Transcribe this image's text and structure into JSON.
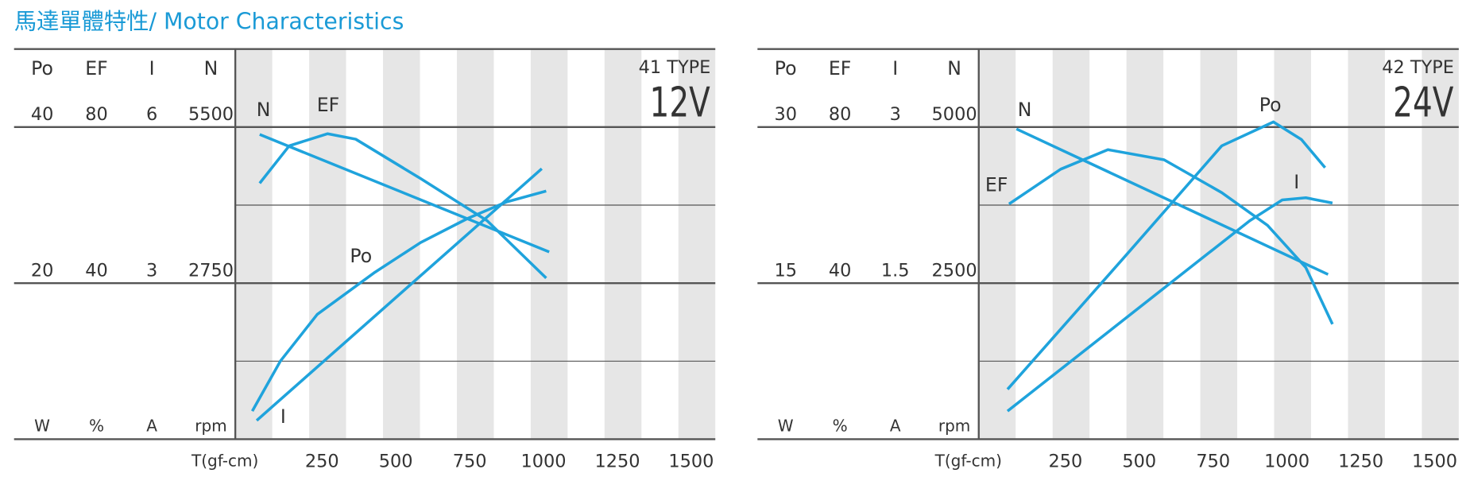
{
  "title": "馬達單體特性/ Motor Characteristics",
  "chart_data": [
    {
      "type": "line",
      "type_label": "41 TYPE",
      "voltage": "12V",
      "x_label": "T(gf-cm)",
      "xlim": [
        -62.5,
        1562.5
      ],
      "xticks": [
        250,
        500,
        750,
        1000,
        1250,
        1500
      ],
      "axes": [
        {
          "name": "Po",
          "unit": "W",
          "ylim": [
            0,
            50
          ],
          "yticks": [
            20,
            40
          ]
        },
        {
          "name": "EF",
          "unit": "%",
          "ylim": [
            0,
            100
          ],
          "yticks": [
            40,
            80
          ]
        },
        {
          "name": "I",
          "unit": "A",
          "ylim": [
            0,
            7.5
          ],
          "yticks": [
            3,
            6
          ]
        },
        {
          "name": "N",
          "unit": "rpm",
          "ylim": [
            0,
            6875
          ],
          "yticks": [
            2750,
            5500
          ]
        }
      ],
      "series": [
        {
          "name": "N",
          "axis": 3,
          "color": "#1fa3dc",
          "x": [
            20,
            1000
          ],
          "values": [
            5370,
            3300
          ]
        },
        {
          "name": "EF",
          "axis": 1,
          "color": "#1fa3dc",
          "x": [
            20,
            120,
            250,
            345,
            565,
            790,
            990
          ],
          "values": [
            65.6,
            75.2,
            78.3,
            76.9,
            66.8,
            56,
            41.3
          ]
        },
        {
          "name": "Po",
          "axis": 0,
          "color": "#1fa3dc",
          "x": [
            -5,
            90,
            215,
            410,
            565,
            725,
            855,
            990
          ],
          "values": [
            3.6,
            10,
            16,
            21.4,
            25.2,
            28.3,
            30.4,
            31.8
          ]
        },
        {
          "name": "I",
          "axis": 2,
          "color": "#1fa3dc",
          "x": [
            10,
            975
          ],
          "values": [
            0.36,
            5.2
          ]
        }
      ]
    },
    {
      "type": "line",
      "type_label": "42 TYPE",
      "voltage": "24V",
      "x_label": "T(gf-cm)",
      "xlim": [
        -62.5,
        1562.5
      ],
      "xticks": [
        250,
        500,
        750,
        1000,
        1250,
        1500
      ],
      "axes": [
        {
          "name": "Po",
          "unit": "W",
          "ylim": [
            0,
            37.5
          ],
          "yticks": [
            15,
            30
          ]
        },
        {
          "name": "EF",
          "unit": "%",
          "ylim": [
            0,
            100
          ],
          "yticks": [
            40,
            80
          ]
        },
        {
          "name": "I",
          "unit": "A",
          "ylim": [
            0,
            3.75
          ],
          "yticks": [
            1.5,
            3
          ]
        },
        {
          "name": "N",
          "unit": "rpm",
          "ylim": [
            0,
            6250
          ],
          "yticks": [
            2500,
            5000
          ]
        }
      ],
      "series": [
        {
          "name": "N",
          "axis": 3,
          "color": "#1fa3dc",
          "x": [
            65,
            1120
          ],
          "values": [
            4970,
            2640
          ]
        },
        {
          "name": "EF",
          "axis": 1,
          "color": "#1fa3dc",
          "x": [
            40,
            215,
            375,
            565,
            760,
            915,
            1045,
            1135
          ],
          "values": [
            60.3,
            69.2,
            74.2,
            71.6,
            63.2,
            54.8,
            44,
            29.5
          ]
        },
        {
          "name": "Po",
          "axis": 0,
          "color": "#1fa3dc",
          "x": [
            35,
            440,
            760,
            935,
            1030,
            1110
          ],
          "values": [
            4.8,
            17.8,
            28.2,
            30.5,
            28.8,
            26.1
          ]
        },
        {
          "name": "I",
          "axis": 2,
          "color": "#1fa3dc",
          "x": [
            35,
            855,
            965,
            1045,
            1135
          ],
          "values": [
            0.27,
            2.1,
            2.3,
            2.32,
            2.27
          ]
        }
      ]
    }
  ]
}
